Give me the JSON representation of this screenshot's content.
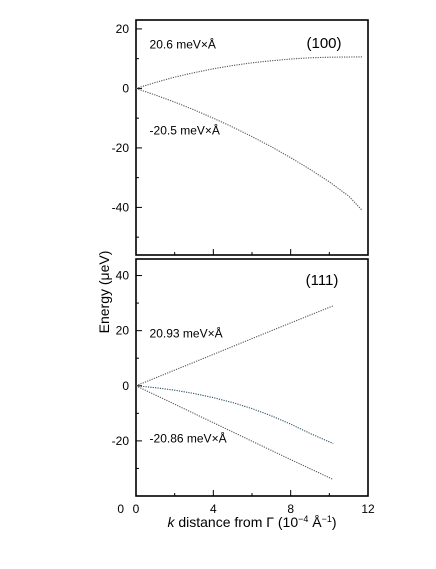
{
  "chart_data": [
    {
      "type": "line",
      "panel_label": "(100)",
      "xlim": [
        0,
        12
      ],
      "ylim": [
        -56,
        23
      ],
      "y_ticks": [
        20,
        0,
        -20,
        -40
      ],
      "grid": false,
      "series": [
        {
          "color": "#555555",
          "style": "dotted",
          "x": [
            0,
            1,
            2,
            3,
            4,
            5,
            6,
            7,
            8,
            9,
            10,
            11.7
          ],
          "y": [
            0,
            2,
            3.8,
            5.3,
            6.6,
            7.7,
            8.6,
            9.3,
            9.9,
            10.3,
            10.5,
            10.6
          ]
        },
        {
          "color": "#555555",
          "style": "dotted",
          "x": [
            0,
            1,
            2,
            3,
            4,
            5,
            6,
            7,
            8,
            9,
            10,
            11,
            11.7
          ],
          "y": [
            0,
            -2.2,
            -4.6,
            -7.2,
            -10,
            -13,
            -16.2,
            -19.6,
            -23.3,
            -27.2,
            -31.4,
            -36.2,
            -41
          ]
        }
      ],
      "annotations": [
        {
          "text": "20.6 meV×Å",
          "x": 0.7,
          "y": 13.5
        },
        {
          "text": "-20.5 meV×Å",
          "x": 0.7,
          "y": -15.5
        }
      ]
    },
    {
      "type": "line",
      "panel_label": "(111)",
      "xlim": [
        0,
        12
      ],
      "ylim": [
        -40,
        46
      ],
      "y_ticks": [
        40,
        20,
        0,
        -20
      ],
      "grid": false,
      "series": [
        {
          "color": "#555555",
          "style": "dotted",
          "x": [
            0,
            2,
            4,
            6,
            8,
            10.2
          ],
          "y": [
            0,
            5.7,
            11.4,
            17.1,
            22.8,
            29
          ]
        },
        {
          "color": "#2f4f5f",
          "style": "dotted",
          "x": [
            0,
            1,
            2,
            3,
            4,
            5,
            6,
            7,
            8,
            9,
            10.2
          ],
          "y": [
            0,
            -0.7,
            -1.6,
            -2.8,
            -4.3,
            -6.1,
            -8.3,
            -10.9,
            -13.9,
            -17.3,
            -21
          ]
        },
        {
          "color": "#555555",
          "style": "dotted",
          "x": [
            0,
            2,
            4,
            6,
            8,
            10.2
          ],
          "y": [
            0,
            -6.7,
            -13.4,
            -20.1,
            -26.8,
            -34
          ]
        }
      ],
      "annotations": [
        {
          "text": "20.93 meV×Å",
          "x": 0.7,
          "y": 17.5
        },
        {
          "text": "-20.86 meV×Å",
          "x": 0.7,
          "y": -20.5
        }
      ]
    }
  ],
  "axes": {
    "x_ticks": [
      0,
      4,
      8,
      12
    ],
    "x_label_italic": "k",
    "x_label_text": " distance from Γ (10",
    "x_label_exp": "−4",
    "x_label_unit": " Å",
    "x_label_exp2": "−1",
    "x_label_close": ")",
    "y_label": "Energy  (μeV)",
    "corner_zero_left": "0",
    "corner_zero_right": "0"
  }
}
